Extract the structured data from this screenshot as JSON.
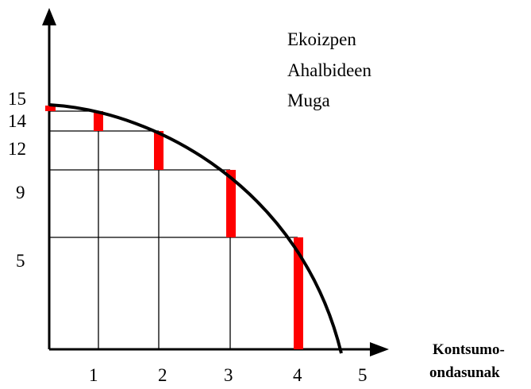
{
  "curve_label": [
    "Ekoizpen",
    "Ahalbideen",
    "Muga"
  ],
  "y_labels": [
    15,
    14,
    12,
    9,
    5
  ],
  "x_labels": [
    1,
    2,
    3,
    4,
    5
  ],
  "x_axis_label": [
    "Kontsumo-",
    "ondasunak"
  ]
}
